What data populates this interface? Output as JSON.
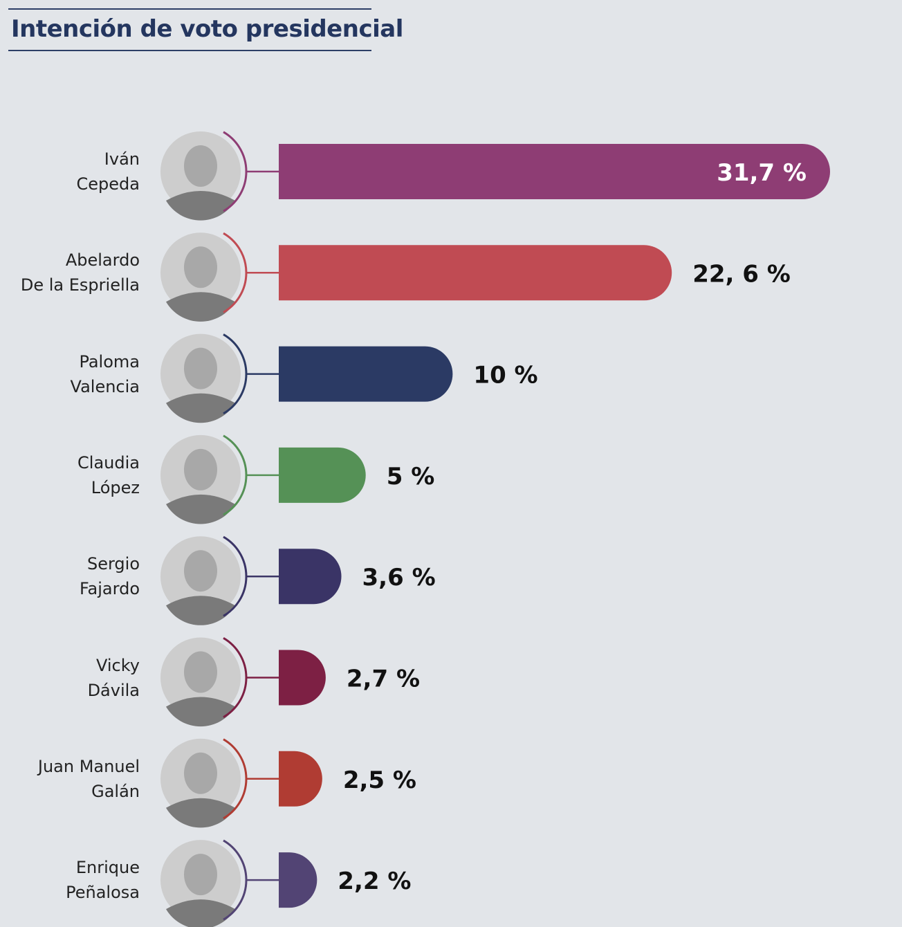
{
  "title": "Intención de voto presidencial",
  "chart_data": {
    "type": "bar",
    "orientation": "horizontal",
    "title": "Intención de voto presidencial",
    "xlabel": "",
    "ylabel": "",
    "unit": "%",
    "xlim": [
      0,
      31.7
    ],
    "grid": false,
    "categories": [
      "Iván Cepeda",
      "Abelardo De la Espriella",
      "Paloma Valencia",
      "Claudia López",
      "Sergio Fajardo",
      "Vicky Dávila",
      "Juan Manuel Galán",
      "Enrique Peñalosa"
    ],
    "values": [
      31.7,
      22.6,
      10,
      5,
      3.6,
      2.7,
      2.5,
      2.2
    ],
    "bars": [
      {
        "name_line1": "Iván",
        "name_line2": "Cepeda",
        "value": 31.7,
        "label": "31,7 %",
        "color": "#8e3d74",
        "label_inside": true,
        "photo": "candidate-photo-ivan-cepeda"
      },
      {
        "name_line1": "Abelardo",
        "name_line2": "De la Espriella",
        "value": 22.6,
        "label": "22, 6 %",
        "color": "#c04b53",
        "label_inside": false,
        "photo": "candidate-photo-abelardo-de-la-espriella"
      },
      {
        "name_line1": "Paloma",
        "name_line2": "Valencia",
        "value": 10,
        "label": "10 %",
        "color": "#2b3a64",
        "label_inside": false,
        "photo": "candidate-photo-paloma-valencia"
      },
      {
        "name_line1": "Claudia",
        "name_line2": "López",
        "value": 5,
        "label": "5 %",
        "color": "#559156",
        "label_inside": false,
        "photo": "candidate-photo-claudia-lopez"
      },
      {
        "name_line1": "Sergio",
        "name_line2": "Fajardo",
        "value": 3.6,
        "label": "3,6 %",
        "color": "#3a3466",
        "label_inside": false,
        "photo": "candidate-photo-sergio-fajardo"
      },
      {
        "name_line1": "Vicky",
        "name_line2": "Dávila",
        "value": 2.7,
        "label": "2,7 %",
        "color": "#7d2044",
        "label_inside": false,
        "photo": "candidate-photo-vicky-davila"
      },
      {
        "name_line1": "Juan Manuel",
        "name_line2": "Galán",
        "value": 2.5,
        "label": "2,5 %",
        "color": "#b03c33",
        "label_inside": false,
        "photo": "candidate-photo-juan-manuel-galan"
      },
      {
        "name_line1": "Enrique",
        "name_line2": "Peñalosa",
        "value": 2.2,
        "label": "2,2 %",
        "color": "#524474",
        "label_inside": false,
        "photo": "candidate-photo-enrique-penalosa"
      }
    ]
  }
}
